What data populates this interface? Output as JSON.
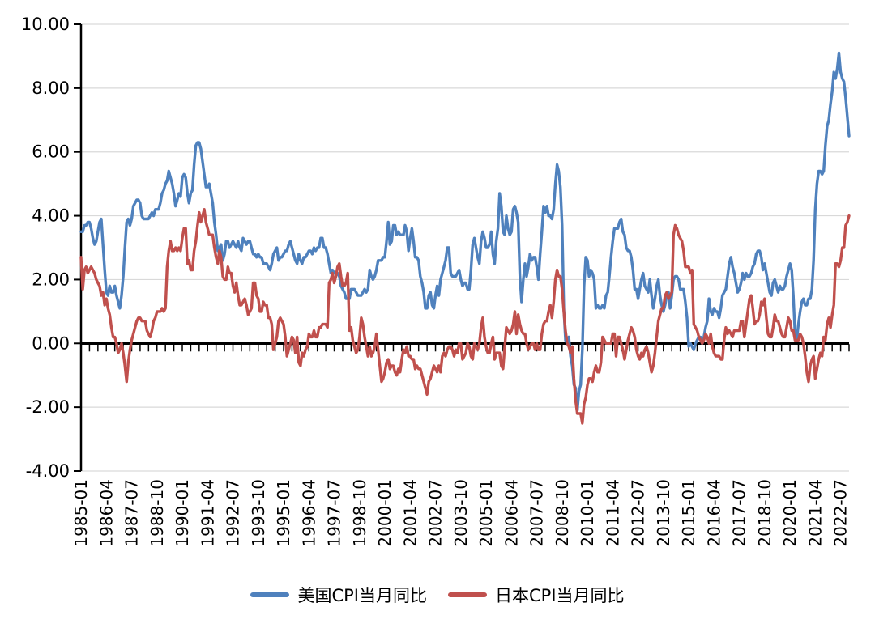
{
  "colors": {
    "background": "#FFFFFF",
    "grid": "#D9D9D9",
    "axis": "#000000",
    "us_line": "#4F81BD",
    "japan_line": "#C0504D"
  },
  "chart_data": {
    "type": "line",
    "title": "",
    "xlabel": "",
    "ylabel": "",
    "grid": "horizontal",
    "legend_position": "bottom",
    "ylim": [
      -4,
      10
    ],
    "y_tick_labels": [
      "10.00",
      "8.00",
      "6.00",
      "4.00",
      "2.00",
      "0.00",
      "-2.00",
      "-4.00"
    ],
    "x_start": "1985-01",
    "x_end": "2022-12",
    "x_frequency": "monthly",
    "x_tick_interval_months": 15,
    "x_minor_tick_interval_months": 5,
    "x_tick_labels": [
      "1985-01",
      "1986-04",
      "1987-07",
      "1988-10",
      "1990-01",
      "1991-04",
      "1992-07",
      "1993-10",
      "1995-01",
      "1996-04",
      "1997-07",
      "1998-10",
      "2000-01",
      "2001-04",
      "2002-07",
      "2003-10",
      "2005-01",
      "2006-04",
      "2007-07",
      "2008-10",
      "2010-01",
      "2011-04",
      "2012-07",
      "2013-10",
      "2015-01",
      "2016-04",
      "2017-07",
      "2018-10",
      "2020-01",
      "2021-04",
      "2022-07"
    ],
    "series": [
      {
        "name": "美国CPI当月同比",
        "color": "#4F81BD",
        "values": [
          3.5,
          3.5,
          3.7,
          3.7,
          3.8,
          3.8,
          3.6,
          3.3,
          3.1,
          3.2,
          3.5,
          3.8,
          3.9,
          3.1,
          2.3,
          1.6,
          1.5,
          1.8,
          1.6,
          1.6,
          1.8,
          1.5,
          1.3,
          1.1,
          1.5,
          2.1,
          3.0,
          3.8,
          3.9,
          3.7,
          3.9,
          4.3,
          4.4,
          4.5,
          4.5,
          4.4,
          4.0,
          3.9,
          3.9,
          3.9,
          3.9,
          4.0,
          4.1,
          4.0,
          4.2,
          4.2,
          4.2,
          4.4,
          4.7,
          4.8,
          5.0,
          5.1,
          5.4,
          5.2,
          5.0,
          4.7,
          4.3,
          4.5,
          4.7,
          4.6,
          5.2,
          5.3,
          5.2,
          4.7,
          4.4,
          4.7,
          4.8,
          5.6,
          6.2,
          6.3,
          6.3,
          6.1,
          5.7,
          5.3,
          4.9,
          4.9,
          5.0,
          4.7,
          4.4,
          3.8,
          3.4,
          2.9,
          3.0,
          3.1,
          2.6,
          2.8,
          3.2,
          3.2,
          3.0,
          3.1,
          3.2,
          3.1,
          3.0,
          3.2,
          3.0,
          2.9,
          3.3,
          3.2,
          3.1,
          3.2,
          3.2,
          3.0,
          2.8,
          2.8,
          2.7,
          2.8,
          2.7,
          2.7,
          2.5,
          2.5,
          2.5,
          2.4,
          2.3,
          2.5,
          2.8,
          2.9,
          3.0,
          2.6,
          2.7,
          2.7,
          2.8,
          2.9,
          2.9,
          3.1,
          3.2,
          3.0,
          2.8,
          2.6,
          2.5,
          2.8,
          2.6,
          2.5,
          2.7,
          2.7,
          2.8,
          2.9,
          2.9,
          2.8,
          3.0,
          2.9,
          3.0,
          3.0,
          3.3,
          3.3,
          3.0,
          3.0,
          2.8,
          2.5,
          2.2,
          2.3,
          2.2,
          2.2,
          2.2,
          2.1,
          1.8,
          1.7,
          1.6,
          1.4,
          1.4,
          1.4,
          1.7,
          1.7,
          1.7,
          1.6,
          1.5,
          1.5,
          1.5,
          1.6,
          1.7,
          1.6,
          1.7,
          2.3,
          2.1,
          2.0,
          2.1,
          2.3,
          2.6,
          2.6,
          2.6,
          2.7,
          2.7,
          3.2,
          3.8,
          3.1,
          3.2,
          3.7,
          3.7,
          3.4,
          3.5,
          3.4,
          3.4,
          3.4,
          3.7,
          3.5,
          2.9,
          3.3,
          3.6,
          3.2,
          2.7,
          2.7,
          2.6,
          2.1,
          1.9,
          1.6,
          1.1,
          1.1,
          1.5,
          1.6,
          1.2,
          1.1,
          1.5,
          1.8,
          1.5,
          2.0,
          2.2,
          2.4,
          2.6,
          3.0,
          3.0,
          2.2,
          2.1,
          2.1,
          2.1,
          2.2,
          2.3,
          2.0,
          1.8,
          1.9,
          1.9,
          1.7,
          1.7,
          2.3,
          3.1,
          3.3,
          3.0,
          2.7,
          2.5,
          3.2,
          3.5,
          3.3,
          3.0,
          3.0,
          3.1,
          3.5,
          2.8,
          2.5,
          3.2,
          3.6,
          4.7,
          4.3,
          3.5,
          3.4,
          4.0,
          3.6,
          3.4,
          3.5,
          4.2,
          4.3,
          4.1,
          3.8,
          2.1,
          1.3,
          2.0,
          2.5,
          2.1,
          2.4,
          2.8,
          2.6,
          2.7,
          2.7,
          2.4,
          2.0,
          2.8,
          3.5,
          4.3,
          4.1,
          4.3,
          4.0,
          4.0,
          3.9,
          4.2,
          5.0,
          5.6,
          5.4,
          4.9,
          3.7,
          1.1,
          0.1,
          0.0,
          0.2,
          -0.4,
          -0.7,
          -1.3,
          -1.4,
          -2.1,
          -1.5,
          -1.3,
          -0.2,
          1.8,
          2.7,
          2.6,
          2.1,
          2.3,
          2.2,
          2.0,
          1.1,
          1.2,
          1.1,
          1.1,
          1.2,
          1.1,
          1.5,
          1.6,
          2.1,
          2.7,
          3.2,
          3.6,
          3.6,
          3.6,
          3.8,
          3.9,
          3.5,
          3.4,
          3.0,
          2.9,
          2.9,
          2.7,
          2.3,
          1.7,
          1.7,
          1.4,
          1.7,
          2.0,
          2.2,
          1.8,
          1.7,
          1.6,
          2.0,
          1.5,
          1.1,
          1.4,
          1.8,
          2.0,
          1.5,
          1.2,
          1.0,
          1.2,
          1.5,
          1.6,
          1.1,
          1.5,
          2.0,
          2.1,
          2.1,
          2.0,
          1.7,
          1.7,
          1.7,
          1.3,
          0.8,
          -0.1,
          0.0,
          -0.1,
          -0.2,
          0.0,
          0.1,
          0.2,
          0.2,
          0.0,
          0.2,
          0.5,
          0.7,
          1.4,
          1.0,
          0.9,
          1.1,
          1.0,
          1.0,
          0.8,
          1.1,
          1.5,
          1.6,
          1.7,
          2.1,
          2.5,
          2.7,
          2.4,
          2.2,
          1.9,
          1.6,
          1.7,
          1.9,
          2.2,
          2.0,
          2.2,
          2.1,
          2.1,
          2.2,
          2.4,
          2.5,
          2.8,
          2.9,
          2.9,
          2.7,
          2.3,
          2.5,
          2.2,
          1.9,
          1.6,
          1.5,
          1.9,
          2.0,
          1.8,
          1.6,
          1.8,
          1.7,
          1.7,
          1.8,
          2.1,
          2.3,
          2.5,
          2.3,
          1.5,
          0.3,
          0.1,
          0.6,
          1.0,
          1.3,
          1.4,
          1.2,
          1.2,
          1.4,
          1.4,
          1.7,
          2.6,
          4.2,
          5.0,
          5.4,
          5.4,
          5.3,
          5.4,
          6.2,
          6.8,
          7.0,
          7.5,
          7.9,
          8.5,
          8.3,
          8.6,
          9.1,
          8.5,
          8.3,
          8.2,
          7.7,
          7.1,
          6.5
        ]
      },
      {
        "name": "日本CPI当月同比",
        "color": "#C0504D",
        "values": [
          2.7,
          1.7,
          2.3,
          2.4,
          2.2,
          2.3,
          2.4,
          2.3,
          2.2,
          2.0,
          1.9,
          1.8,
          1.5,
          1.6,
          1.2,
          1.4,
          1.1,
          0.9,
          0.5,
          0.2,
          0.2,
          0.0,
          -0.3,
          -0.2,
          0.0,
          -0.3,
          -0.7,
          -1.2,
          -0.6,
          -0.2,
          0.1,
          0.3,
          0.5,
          0.7,
          0.8,
          0.8,
          0.7,
          0.7,
          0.7,
          0.4,
          0.3,
          0.2,
          0.4,
          0.7,
          0.8,
          1.0,
          1.0,
          1.0,
          1.1,
          1.0,
          1.1,
          2.4,
          2.9,
          3.2,
          2.9,
          2.9,
          3.0,
          2.9,
          3.0,
          2.9,
          3.3,
          3.6,
          3.6,
          2.5,
          2.6,
          2.3,
          2.3,
          2.9,
          3.2,
          3.7,
          4.1,
          3.8,
          4.0,
          4.2,
          3.8,
          3.6,
          3.4,
          3.4,
          3.4,
          3.0,
          2.7,
          2.5,
          2.9,
          2.7,
          2.1,
          2.0,
          2.0,
          2.4,
          2.2,
          2.2,
          1.8,
          1.6,
          1.9,
          1.5,
          1.2,
          1.2,
          1.3,
          1.4,
          1.2,
          0.9,
          1.0,
          1.1,
          1.9,
          1.9,
          1.5,
          1.4,
          1.0,
          1.0,
          1.3,
          1.2,
          1.2,
          0.8,
          0.8,
          0.6,
          -0.2,
          0.0,
          0.2,
          0.7,
          0.8,
          0.7,
          0.6,
          0.2,
          -0.4,
          -0.2,
          0.0,
          0.2,
          0.1,
          -0.3,
          0.2,
          -0.6,
          -0.7,
          -0.3,
          -0.4,
          -0.2,
          -0.1,
          0.3,
          0.2,
          0.2,
          0.4,
          0.2,
          0.2,
          0.5,
          0.5,
          0.6,
          0.6,
          0.6,
          0.5,
          1.9,
          2.0,
          2.2,
          1.9,
          2.1,
          2.4,
          2.5,
          2.1,
          1.8,
          1.8,
          1.9,
          2.2,
          0.4,
          0.5,
          0.1,
          -0.1,
          -0.3,
          -0.2,
          0.2,
          0.8,
          0.6,
          0.2,
          -0.1,
          -0.4,
          -0.1,
          -0.4,
          -0.3,
          -0.1,
          0.3,
          -0.2,
          -0.7,
          -1.2,
          -1.1,
          -0.9,
          -0.6,
          -0.5,
          -0.8,
          -0.7,
          -0.7,
          -0.9,
          -1.0,
          -0.8,
          -0.9,
          -0.5,
          -0.2,
          -0.3,
          -0.1,
          -0.4,
          -0.4,
          -0.5,
          -0.5,
          -0.8,
          -0.7,
          -0.8,
          -0.8,
          -1.0,
          -1.2,
          -1.4,
          -1.6,
          -1.2,
          -1.1,
          -0.9,
          -0.7,
          -0.8,
          -0.9,
          -0.7,
          -0.9,
          -0.4,
          -0.3,
          -0.4,
          -0.2,
          -0.1,
          -0.1,
          -0.2,
          -0.4,
          -0.2,
          -0.3,
          0.0,
          0.0,
          -0.5,
          -0.4,
          -0.3,
          0.0,
          -0.1,
          -0.4,
          -0.5,
          0.0,
          -0.1,
          -0.2,
          0.0,
          0.5,
          0.8,
          0.2,
          -0.1,
          -0.3,
          -0.3,
          0.0,
          0.2,
          -0.5,
          -0.3,
          -0.3,
          -0.3,
          -0.7,
          -0.8,
          -0.1,
          0.5,
          0.4,
          0.3,
          0.4,
          0.6,
          1.0,
          0.3,
          0.9,
          0.6,
          0.4,
          0.3,
          0.3,
          0.0,
          -0.2,
          -0.1,
          0.0,
          0.0,
          -0.2,
          0.0,
          -0.2,
          -0.2,
          0.3,
          0.6,
          0.7,
          0.7,
          1.0,
          1.2,
          0.8,
          1.3,
          2.0,
          2.3,
          2.1,
          2.1,
          1.7,
          1.0,
          0.4,
          0.0,
          -0.1,
          -0.3,
          -0.1,
          -1.1,
          -1.8,
          -2.2,
          -2.2,
          -2.2,
          -2.5,
          -1.9,
          -1.7,
          -1.3,
          -1.1,
          -1.1,
          -1.2,
          -0.9,
          -0.7,
          -0.9,
          -0.9,
          -0.6,
          0.2,
          0.1,
          0.0,
          0.0,
          0.0,
          0.0,
          0.3,
          0.3,
          -0.4,
          0.2,
          0.2,
          0.0,
          -0.2,
          -0.5,
          -0.2,
          0.1,
          0.3,
          0.5,
          0.4,
          0.2,
          -0.2,
          -0.4,
          -0.5,
          -0.3,
          -0.4,
          -0.2,
          -0.1,
          -0.3,
          -0.6,
          -0.9,
          -0.7,
          -0.3,
          0.2,
          0.7,
          0.9,
          1.1,
          1.1,
          1.5,
          1.6,
          1.4,
          1.5,
          1.6,
          3.4,
          3.7,
          3.6,
          3.4,
          3.3,
          3.2,
          2.9,
          2.4,
          2.4,
          2.4,
          2.2,
          2.3,
          0.6,
          0.5,
          0.4,
          0.2,
          0.1,
          0.0,
          0.1,
          0.3,
          0.2,
          0.0,
          0.3,
          -0.1,
          -0.3,
          -0.4,
          -0.4,
          -0.4,
          -0.5,
          -0.5,
          0.1,
          0.5,
          0.3,
          0.4,
          0.3,
          0.2,
          0.4,
          0.4,
          0.4,
          0.4,
          0.7,
          0.7,
          0.2,
          0.6,
          1.0,
          1.4,
          1.5,
          1.1,
          0.6,
          0.7,
          0.7,
          0.9,
          1.3,
          1.2,
          1.4,
          0.8,
          0.3,
          0.2,
          0.2,
          0.5,
          0.9,
          0.7,
          0.7,
          0.5,
          0.3,
          0.2,
          0.2,
          0.5,
          0.8,
          0.7,
          0.4,
          0.4,
          0.1,
          0.1,
          0.1,
          0.3,
          0.2,
          0.0,
          -0.4,
          -0.9,
          -1.2,
          -0.7,
          -0.5,
          -0.4,
          -1.1,
          -0.8,
          -0.5,
          -0.3,
          -0.4,
          0.2,
          0.1,
          0.6,
          0.8,
          0.5,
          0.9,
          1.2,
          2.5,
          2.5,
          2.4,
          2.6,
          3.0,
          3.0,
          3.7,
          3.8,
          4.0
        ]
      }
    ]
  }
}
